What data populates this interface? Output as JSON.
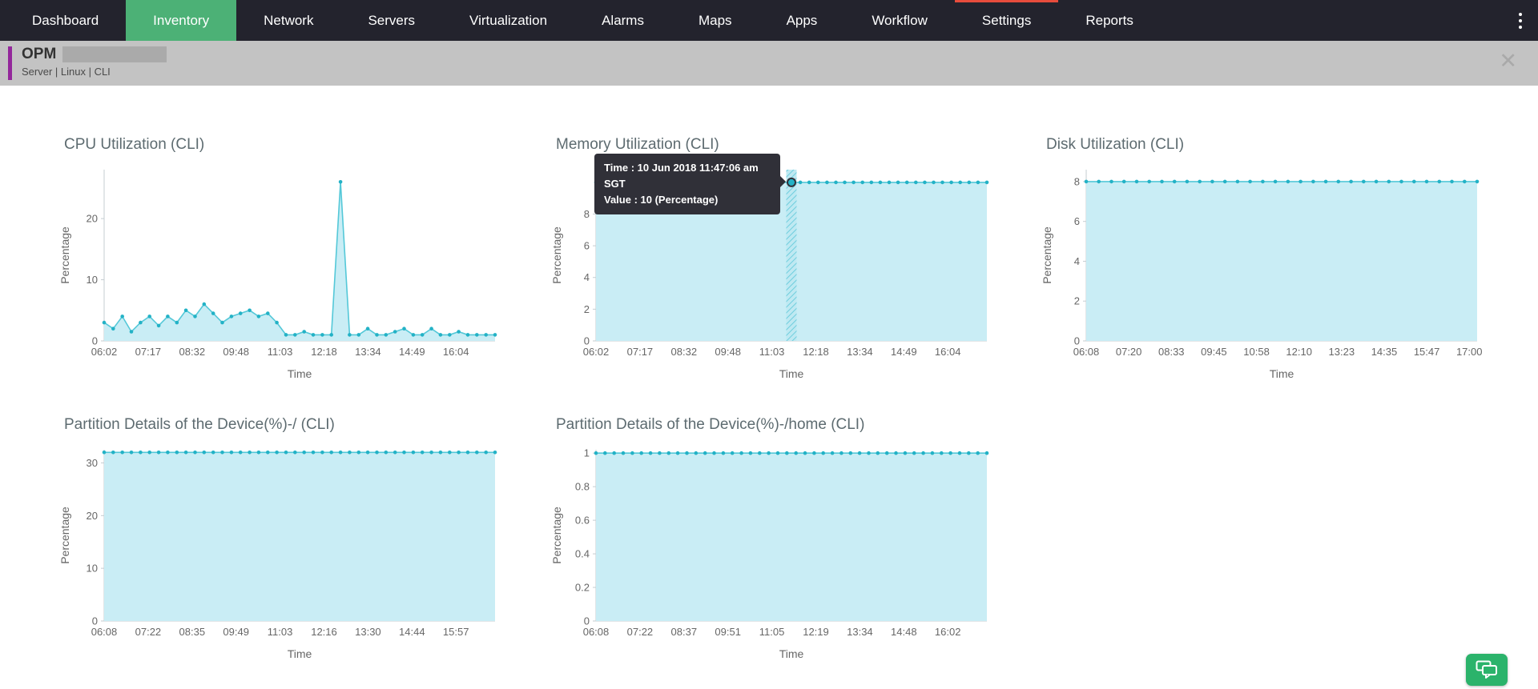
{
  "nav": {
    "items": [
      {
        "label": "Dashboard",
        "active": false,
        "alert": false
      },
      {
        "label": "Inventory",
        "active": true,
        "alert": false
      },
      {
        "label": "Network",
        "active": false,
        "alert": false
      },
      {
        "label": "Servers",
        "active": false,
        "alert": false
      },
      {
        "label": "Virtualization",
        "active": false,
        "alert": false
      },
      {
        "label": "Alarms",
        "active": false,
        "alert": false
      },
      {
        "label": "Maps",
        "active": false,
        "alert": false
      },
      {
        "label": "Apps",
        "active": false,
        "alert": false
      },
      {
        "label": "Workflow",
        "active": false,
        "alert": false
      },
      {
        "label": "Settings",
        "active": false,
        "alert": true
      },
      {
        "label": "Reports",
        "active": false,
        "alert": false
      }
    ],
    "kebab_icon": "kebab-menu-icon"
  },
  "header": {
    "title": "OPM",
    "subtitle": "Server | Linux | CLI",
    "close_glyph": "✕"
  },
  "colors": {
    "nav_bg": "#23232d",
    "active_tab": "#4cb176",
    "alert_red": "#e74c3c",
    "header_bg": "#c3c3c3",
    "accent_purple": "#93279b",
    "area_fill": "#c9edf5",
    "line": "#54c8d8",
    "dot": "#23b2c6",
    "tooltip_bg": "#303038",
    "chat_green": "#2bb36b"
  },
  "chart_data": [
    {
      "type": "area",
      "title": "CPU Utilization (CLI)",
      "xlabel": "Time",
      "ylabel": "Percentage",
      "ymax": 28,
      "ytick_vals": [
        0,
        10,
        20
      ],
      "ytick_labels": [
        "0",
        "10",
        "20"
      ],
      "xticks": [
        "06:02",
        "07:17",
        "08:32",
        "09:48",
        "11:03",
        "12:18",
        "13:34",
        "14:49",
        "16:04"
      ],
      "tick_span": 0.9,
      "values": [
        3,
        2,
        4,
        1.5,
        3,
        4,
        2.5,
        4,
        3,
        5,
        4,
        6,
        4.5,
        3,
        4,
        4.5,
        5,
        4,
        4.5,
        3,
        1,
        1,
        1.5,
        1,
        1,
        1,
        26,
        1,
        1,
        2,
        1,
        1,
        1.5,
        2,
        1,
        1,
        2,
        1,
        1,
        1.5,
        1,
        1,
        1,
        1
      ]
    },
    {
      "type": "area",
      "title": "Memory Utilization (CLI)",
      "xlabel": "Time",
      "ylabel": "Percentage",
      "ymax": 10.8,
      "ytick_vals": [
        0,
        2,
        4,
        6,
        8
      ],
      "ytick_labels": [
        "0",
        "2",
        "4",
        "6",
        "8"
      ],
      "xticks": [
        "06:02",
        "07:17",
        "08:32",
        "09:48",
        "11:03",
        "12:18",
        "13:34",
        "14:49",
        "16:04"
      ],
      "tick_span": 0.9,
      "values": [
        10,
        10,
        10,
        10,
        10,
        10,
        10,
        10,
        10,
        10,
        10,
        10,
        10,
        10,
        10,
        10,
        10,
        10,
        10,
        10,
        10,
        10,
        10,
        10,
        10,
        10,
        10,
        10,
        10,
        10,
        10,
        10,
        10,
        10,
        10,
        10,
        10,
        10,
        10,
        10,
        10,
        10,
        10,
        10,
        10
      ],
      "hover": {
        "index": 22,
        "tooltip_time": "Time : 10 Jun 2018 11:47:06 am SGT",
        "tooltip_value": "Value : 10 (Percentage)"
      }
    },
    {
      "type": "area",
      "title": "Disk Utilization (CLI)",
      "xlabel": "Time",
      "ylabel": "Percentage",
      "ymax": 8.6,
      "ytick_vals": [
        0,
        2,
        4,
        6,
        8
      ],
      "ytick_labels": [
        "0",
        "2",
        "4",
        "6",
        "8"
      ],
      "xticks": [
        "06:08",
        "07:20",
        "08:33",
        "09:45",
        "10:58",
        "12:10",
        "13:23",
        "14:35",
        "15:47",
        "17:00"
      ],
      "tick_span": 0.98,
      "values": [
        8,
        8,
        8,
        8,
        8,
        8,
        8,
        8,
        8,
        8,
        8,
        8,
        8,
        8,
        8,
        8,
        8,
        8,
        8,
        8,
        8,
        8,
        8,
        8,
        8,
        8,
        8,
        8,
        8,
        8,
        8,
        8
      ]
    },
    {
      "type": "area",
      "title": "Partition Details of the Device(%)-/ (CLI)",
      "xlabel": "Time",
      "ylabel": "Percentage",
      "ymax": 32.5,
      "ytick_vals": [
        0,
        10,
        20,
        30
      ],
      "ytick_labels": [
        "0",
        "10",
        "20",
        "30"
      ],
      "xticks": [
        "06:08",
        "07:22",
        "08:35",
        "09:49",
        "11:03",
        "12:16",
        "13:30",
        "14:44",
        "15:57"
      ],
      "tick_span": 0.9,
      "values": [
        32,
        32,
        32,
        32,
        32,
        32,
        32,
        32,
        32,
        32,
        32,
        32,
        32,
        32,
        32,
        32,
        32,
        32,
        32,
        32,
        32,
        32,
        32,
        32,
        32,
        32,
        32,
        32,
        32,
        32,
        32,
        32,
        32,
        32,
        32,
        32,
        32,
        32,
        32,
        32,
        32,
        32,
        32,
        32
      ]
    },
    {
      "type": "area",
      "title": "Partition Details of the Device(%)-/home (CLI)",
      "xlabel": "Time",
      "ylabel": "Percentage",
      "ymax": 1.02,
      "ytick_vals": [
        0,
        0.2,
        0.4,
        0.6,
        0.8,
        1
      ],
      "ytick_labels": [
        "0",
        "0.2",
        "0.4",
        "0.6",
        "0.8",
        "1"
      ],
      "xticks": [
        "06:08",
        "07:22",
        "08:37",
        "09:51",
        "11:05",
        "12:19",
        "13:34",
        "14:48",
        "16:02"
      ],
      "tick_span": 0.9,
      "values": [
        1,
        1,
        1,
        1,
        1,
        1,
        1,
        1,
        1,
        1,
        1,
        1,
        1,
        1,
        1,
        1,
        1,
        1,
        1,
        1,
        1,
        1,
        1,
        1,
        1,
        1,
        1,
        1,
        1,
        1,
        1,
        1,
        1,
        1,
        1,
        1,
        1,
        1,
        1,
        1,
        1,
        1,
        1,
        1
      ]
    }
  ]
}
